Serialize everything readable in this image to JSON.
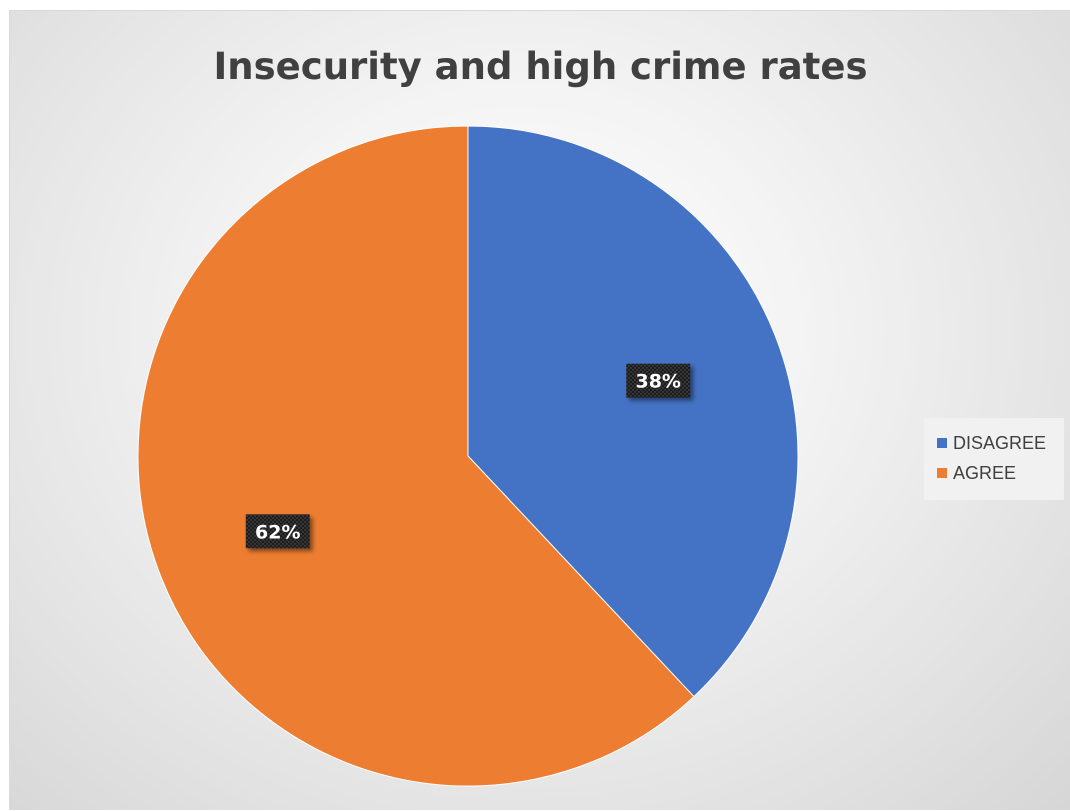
{
  "chart_data": {
    "type": "pie",
    "title": "Insecurity and high crime rates",
    "categories": [
      "DISAGREE",
      "AGREE"
    ],
    "values": [
      38,
      62
    ],
    "value_labels": [
      "38%",
      "62%"
    ],
    "colors": [
      "#4472C4",
      "#ED7D31"
    ],
    "start_angle_deg": 0,
    "direction": "clockwise",
    "legend_position": "right"
  }
}
